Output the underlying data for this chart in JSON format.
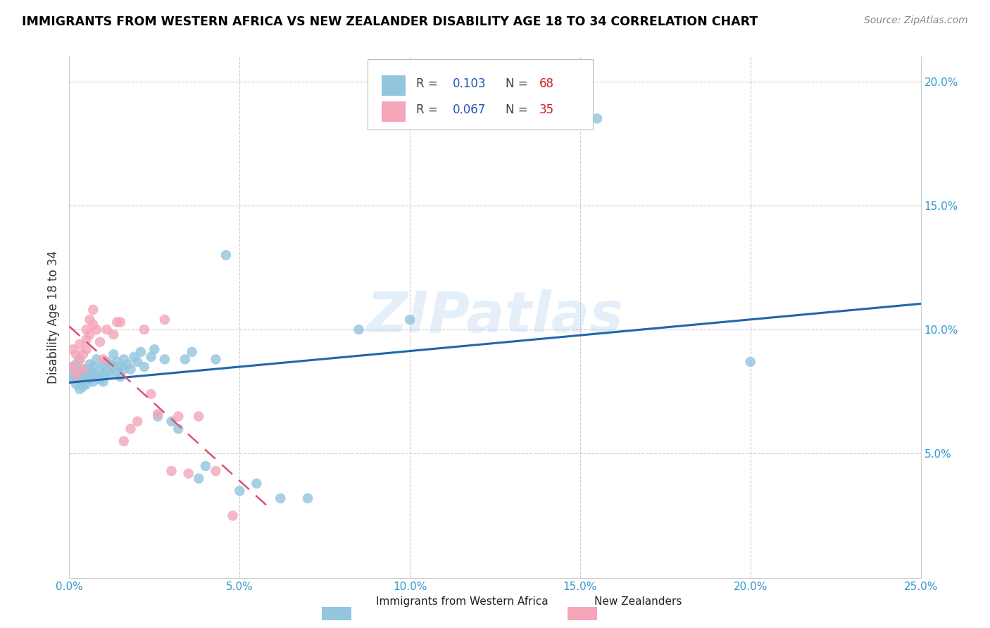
{
  "title": "IMMIGRANTS FROM WESTERN AFRICA VS NEW ZEALANDER DISABILITY AGE 18 TO 34 CORRELATION CHART",
  "source": "Source: ZipAtlas.com",
  "ylabel": "Disability Age 18 to 34",
  "x_min": 0.0,
  "x_max": 0.25,
  "y_min": 0.0,
  "y_max": 0.21,
  "legend_r1": "0.103",
  "legend_n1": "68",
  "legend_r2": "0.067",
  "legend_n2": "35",
  "blue_color": "#92c5de",
  "blue_line_color": "#2166ac",
  "pink_color": "#f4a5b8",
  "pink_line_color": "#d6537a",
  "watermark": "ZIPatlas",
  "blue_scatter_x": [
    0.001,
    0.001,
    0.001,
    0.002,
    0.002,
    0.002,
    0.002,
    0.003,
    0.003,
    0.003,
    0.003,
    0.004,
    0.004,
    0.004,
    0.005,
    0.005,
    0.005,
    0.006,
    0.006,
    0.006,
    0.007,
    0.007,
    0.007,
    0.008,
    0.008,
    0.009,
    0.009,
    0.01,
    0.01,
    0.01,
    0.011,
    0.011,
    0.012,
    0.012,
    0.013,
    0.013,
    0.014,
    0.014,
    0.015,
    0.015,
    0.016,
    0.016,
    0.017,
    0.018,
    0.019,
    0.02,
    0.021,
    0.022,
    0.024,
    0.025,
    0.026,
    0.028,
    0.03,
    0.032,
    0.034,
    0.036,
    0.038,
    0.04,
    0.043,
    0.046,
    0.05,
    0.055,
    0.062,
    0.07,
    0.085,
    0.1,
    0.155,
    0.2
  ],
  "blue_scatter_y": [
    0.08,
    0.082,
    0.085,
    0.078,
    0.08,
    0.083,
    0.086,
    0.076,
    0.079,
    0.082,
    0.088,
    0.077,
    0.08,
    0.084,
    0.078,
    0.081,
    0.084,
    0.08,
    0.083,
    0.086,
    0.079,
    0.082,
    0.085,
    0.081,
    0.088,
    0.08,
    0.084,
    0.079,
    0.082,
    0.086,
    0.083,
    0.087,
    0.082,
    0.086,
    0.085,
    0.09,
    0.083,
    0.087,
    0.081,
    0.085,
    0.084,
    0.088,
    0.086,
    0.084,
    0.089,
    0.087,
    0.091,
    0.085,
    0.089,
    0.092,
    0.065,
    0.088,
    0.063,
    0.06,
    0.088,
    0.091,
    0.04,
    0.045,
    0.088,
    0.13,
    0.035,
    0.038,
    0.032,
    0.032,
    0.1,
    0.104,
    0.185,
    0.087
  ],
  "pink_scatter_x": [
    0.001,
    0.001,
    0.002,
    0.002,
    0.003,
    0.003,
    0.004,
    0.004,
    0.005,
    0.005,
    0.005,
    0.006,
    0.006,
    0.007,
    0.007,
    0.008,
    0.009,
    0.01,
    0.011,
    0.013,
    0.014,
    0.015,
    0.016,
    0.018,
    0.02,
    0.022,
    0.024,
    0.026,
    0.028,
    0.03,
    0.032,
    0.035,
    0.038,
    0.043,
    0.048
  ],
  "pink_scatter_y": [
    0.085,
    0.092,
    0.082,
    0.09,
    0.088,
    0.094,
    0.084,
    0.09,
    0.092,
    0.096,
    0.1,
    0.098,
    0.104,
    0.102,
    0.108,
    0.1,
    0.095,
    0.088,
    0.1,
    0.098,
    0.103,
    0.103,
    0.055,
    0.06,
    0.063,
    0.1,
    0.074,
    0.066,
    0.104,
    0.043,
    0.065,
    0.042,
    0.065,
    0.043,
    0.025
  ]
}
